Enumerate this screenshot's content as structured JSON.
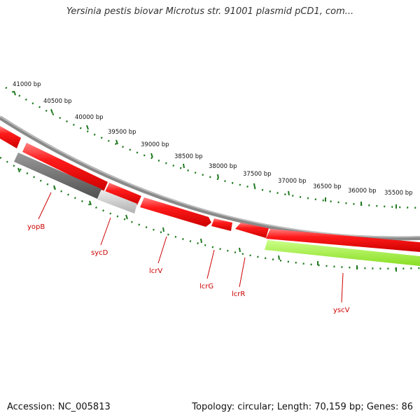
{
  "header": {
    "title": "Yersinia pestis biovar Microtus str. 91001 plasmid pCD1, com..."
  },
  "footer": {
    "accession": "Accession: NC_005813",
    "summary": "Topology: circular; Length: 70,159 bp; Genes: 86"
  },
  "colors": {
    "forward_gene": "#ee1111",
    "gray_gene_dark": "#666666",
    "gray_gene_light": "#c8c8c8",
    "green_gene": "#99ee33",
    "backbone": "#888888",
    "tick": "#1f7a1f",
    "gene_label": "#cc0000"
  },
  "map": {
    "ticks": [
      {
        "label": "41000 bp"
      },
      {
        "label": "40500 bp"
      },
      {
        "label": "40000 bp"
      },
      {
        "label": "39500 bp"
      },
      {
        "label": "39000 bp"
      },
      {
        "label": "38500 bp"
      },
      {
        "label": "38000 bp"
      },
      {
        "label": "37500 bp"
      },
      {
        "label": "37000 bp"
      },
      {
        "label": "36500 bp"
      },
      {
        "label": "36000 bp"
      },
      {
        "label": "35500 bp"
      }
    ],
    "genes": [
      {
        "name": "yopB",
        "color": "gray_gene_dark"
      },
      {
        "name": "sycD",
        "color": "gray_gene_light"
      },
      {
        "name": "lcrV",
        "color": "forward_gene"
      },
      {
        "name": "lcrG",
        "color": "forward_gene"
      },
      {
        "name": "lcrR",
        "color": "forward_gene"
      },
      {
        "name": "yscV",
        "color": "green_gene"
      }
    ]
  }
}
